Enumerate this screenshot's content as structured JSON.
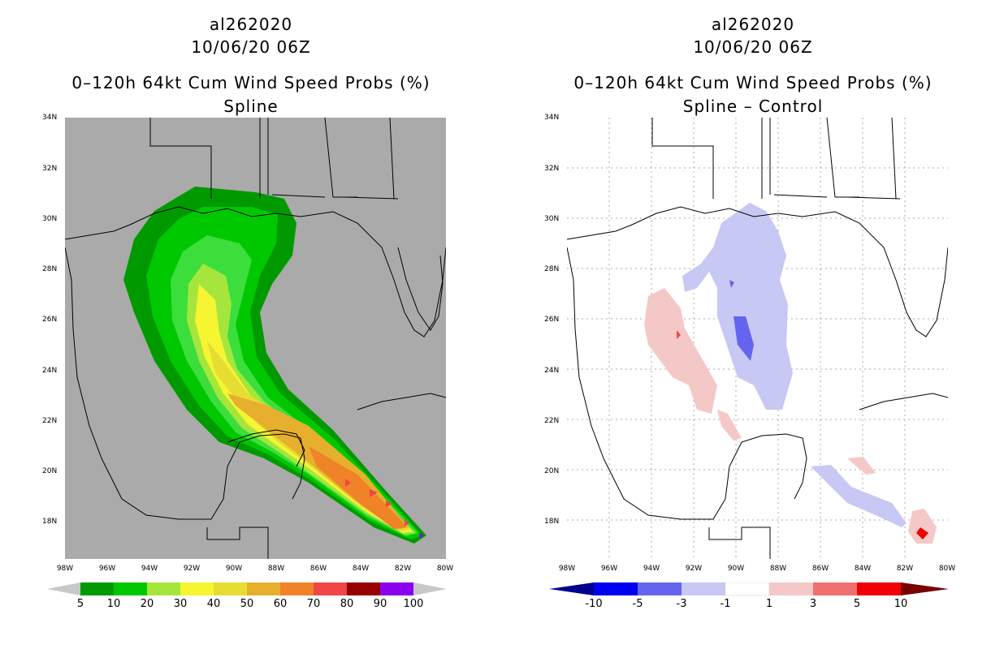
{
  "left": {
    "storm_id": "al262020",
    "datetime": "10/06/20 06Z",
    "product": "0–120h 64kt Cum Wind Speed Probs (%)",
    "subtitle": "Spline",
    "colorbar": {
      "labels": [
        "5",
        "10",
        "20",
        "30",
        "40",
        "50",
        "60",
        "70",
        "80",
        "90",
        "100"
      ],
      "colors": [
        "#009a00",
        "#00c800",
        "#3cde3c",
        "#a6e63c",
        "#f5f532",
        "#e6dc32",
        "#e6af2d",
        "#f08228",
        "#f04646",
        "#960000",
        "#8c00f0",
        "#c8c8c8"
      ]
    }
  },
  "right": {
    "storm_id": "al262020",
    "datetime": "10/06/20 06Z",
    "product": "0–120h 64kt Cum Wind Speed Probs (%)",
    "subtitle": "Spline – Control",
    "colorbar": {
      "labels": [
        "-10",
        "-5",
        "-3",
        "-1",
        "1",
        "3",
        "5",
        "10"
      ],
      "colors": [
        "#00008c",
        "#0000f0",
        "#6464f0",
        "#c8c8f5",
        "#ffffff",
        "#f5c8c8",
        "#f07070",
        "#f00000",
        "#780000"
      ]
    }
  },
  "axes": {
    "lat_labels": [
      "34N",
      "32N",
      "30N",
      "28N",
      "26N",
      "24N",
      "22N",
      "20N",
      "18N"
    ],
    "lon_labels": [
      "98W",
      "96W",
      "94W",
      "92W",
      "90W",
      "88W",
      "86W",
      "84W",
      "82W",
      "80W"
    ]
  }
}
